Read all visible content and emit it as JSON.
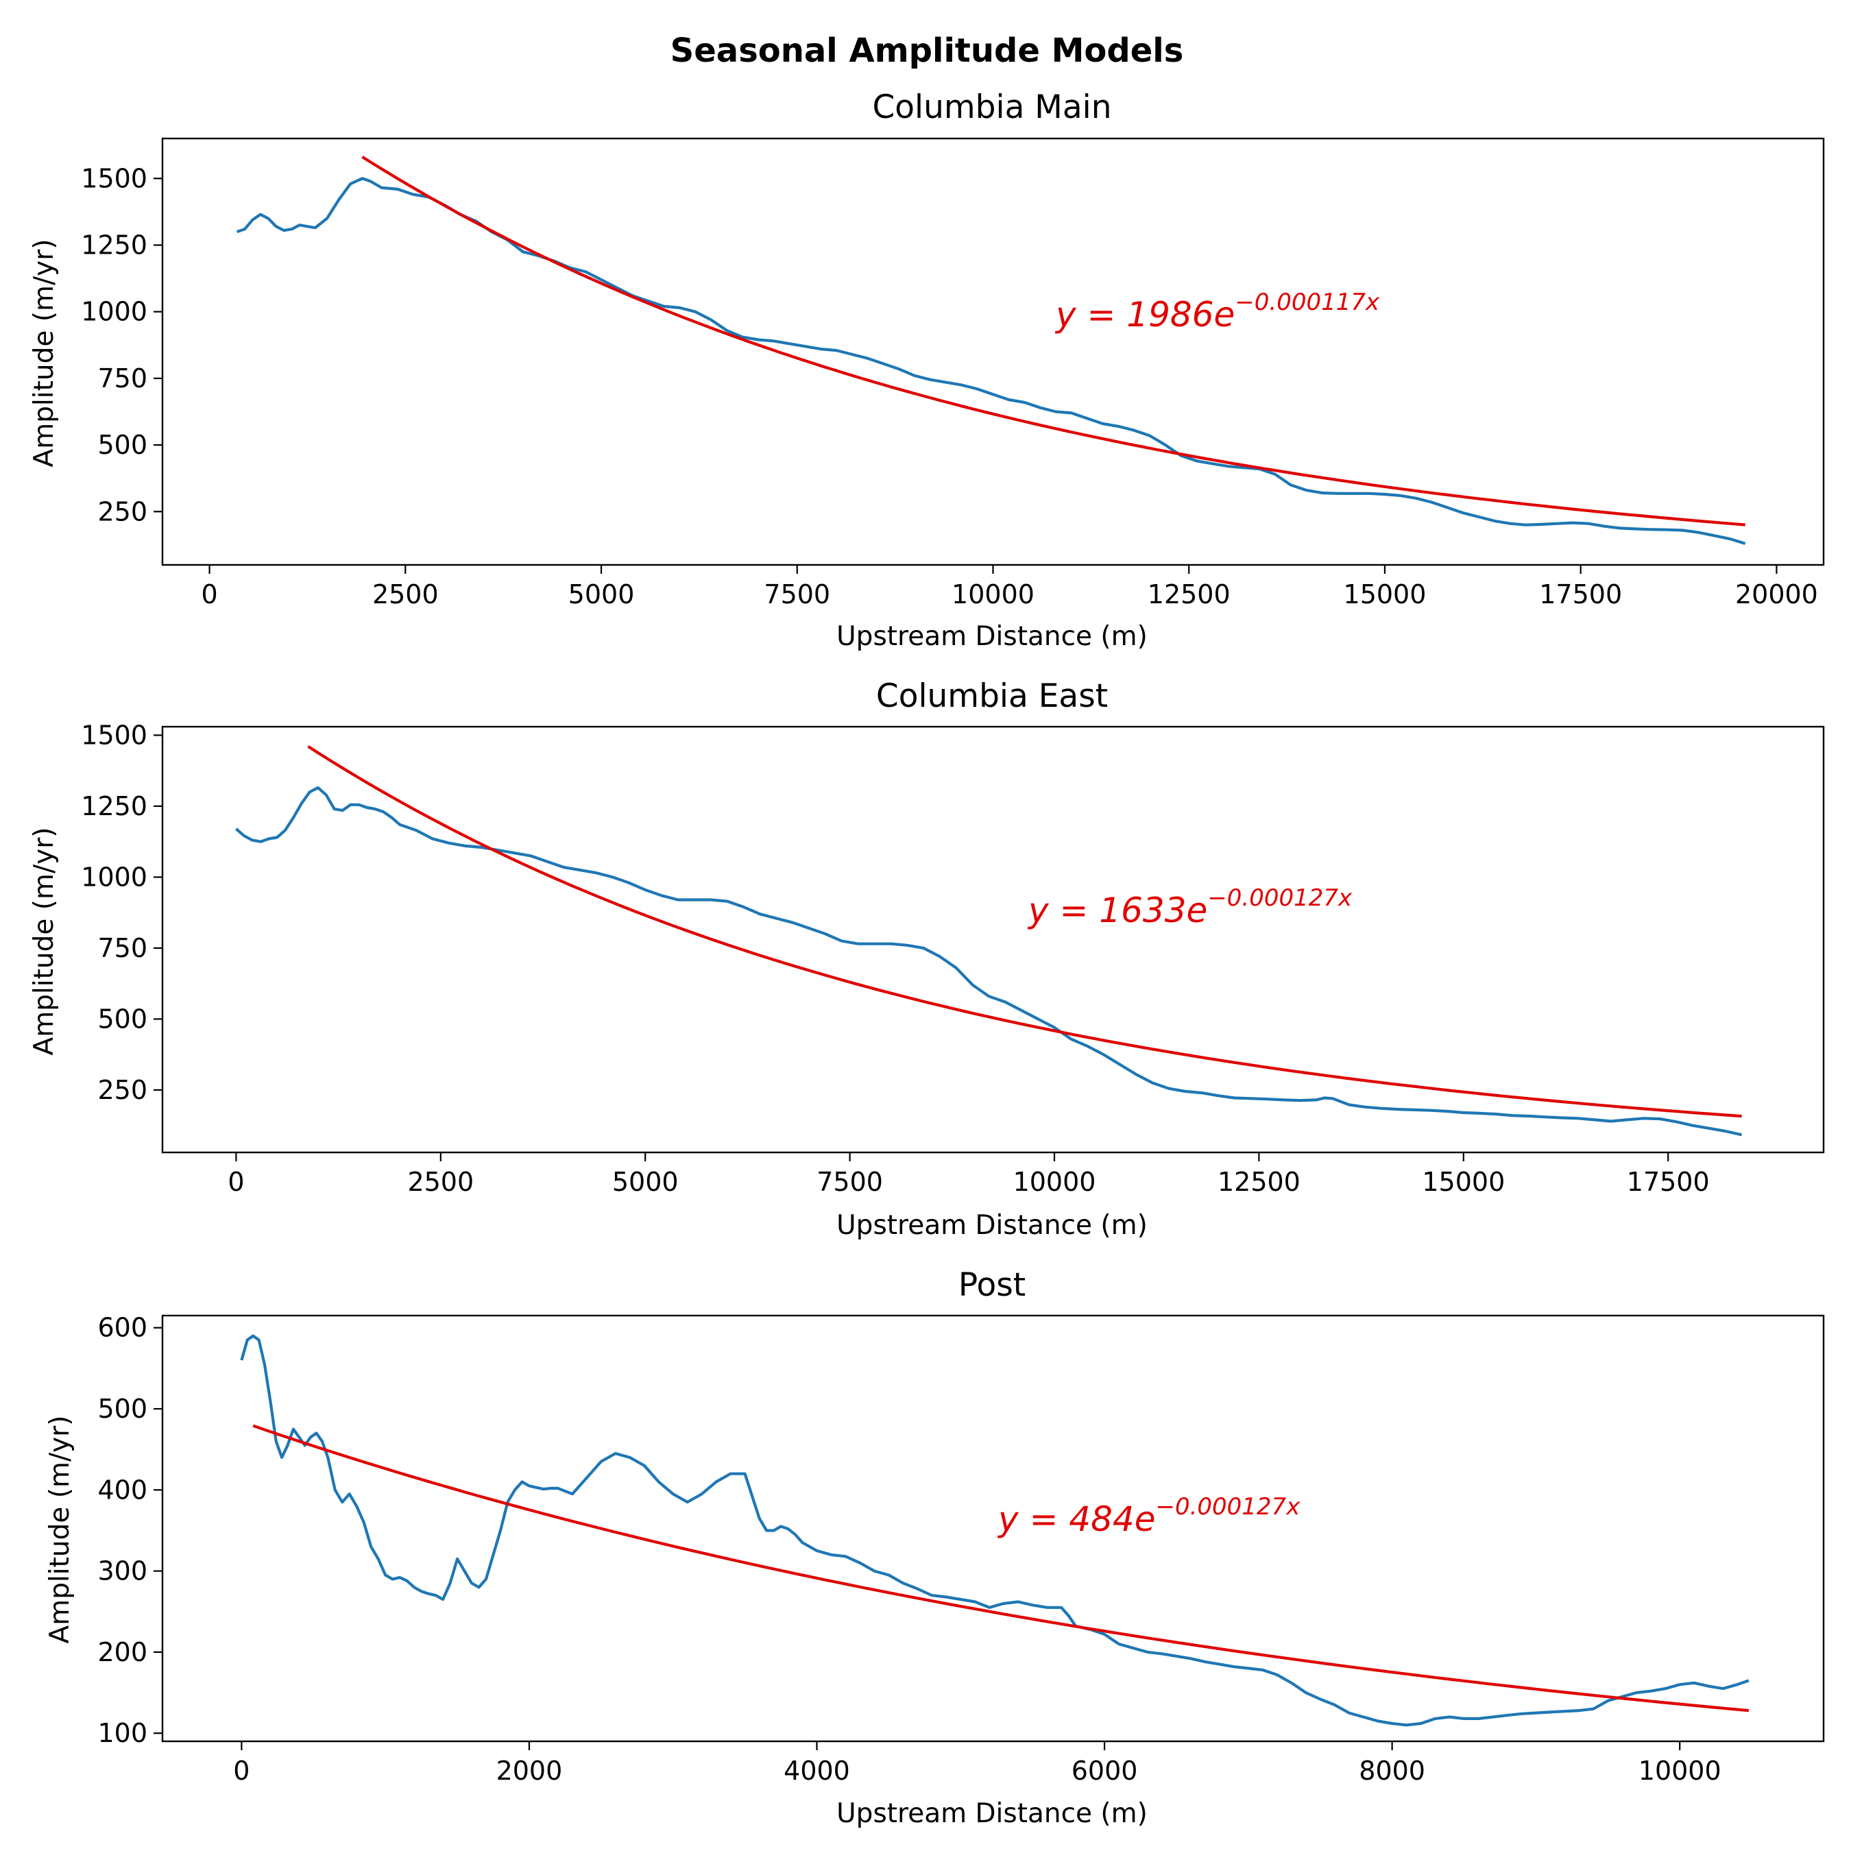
{
  "figure_title": "Seasonal Amplitude Models",
  "colors": {
    "data_line": "#1f77b4",
    "fit_line": "#e00000",
    "axis": "#000000"
  },
  "chart_data": [
    {
      "type": "line",
      "title": "Columbia Main",
      "xlabel": "Upstream Distance (m)",
      "ylabel": "Amplitude (m/yr)",
      "xlim": [
        -600,
        20600
      ],
      "ylim": [
        50,
        1650
      ],
      "xticks": [
        0,
        2500,
        5000,
        7500,
        10000,
        12500,
        15000,
        17500,
        20000
      ],
      "yticks": [
        250,
        500,
        750,
        1000,
        1250,
        1500
      ],
      "grid": false,
      "equation": {
        "prefix": "y = 1986e",
        "exponent": "−0.000117x"
      },
      "fit": {
        "a": 1986,
        "b": 0.000117,
        "x_start": 1950,
        "x_end": 19600
      },
      "series": [
        {
          "x": [
            350,
            450,
            550,
            650,
            750,
            850,
            950,
            1050,
            1150,
            1250,
            1350,
            1500,
            1650,
            1800,
            1950,
            2050,
            2200,
            2400,
            2600,
            2800,
            3000,
            3200,
            3400,
            3600,
            3800,
            4000,
            4200,
            4400,
            4600,
            4800,
            5000,
            5200,
            5400,
            5600,
            5800,
            6000,
            6200,
            6400,
            6600,
            6800,
            7000,
            7200,
            7400,
            7600,
            7800,
            8000,
            8200,
            8400,
            8600,
            8800,
            9000,
            9200,
            9400,
            9600,
            9800,
            10000,
            10200,
            10400,
            10600,
            10800,
            11000,
            11200,
            11400,
            11600,
            11800,
            12000,
            12200,
            12400,
            12600,
            12800,
            13000,
            13200,
            13400,
            13600,
            13800,
            14000,
            14200,
            14400,
            14600,
            14800,
            15000,
            15200,
            15400,
            15600,
            15800,
            16000,
            16200,
            16400,
            16600,
            16800,
            17000,
            17200,
            17400,
            17600,
            17800,
            18000,
            18200,
            18400,
            18600,
            18800,
            19000,
            19200,
            19400,
            19600
          ],
          "y": [
            1300,
            1310,
            1345,
            1365,
            1350,
            1320,
            1305,
            1310,
            1325,
            1320,
            1315,
            1350,
            1420,
            1480,
            1500,
            1490,
            1465,
            1460,
            1440,
            1430,
            1400,
            1365,
            1340,
            1300,
            1270,
            1225,
            1210,
            1190,
            1165,
            1150,
            1120,
            1090,
            1060,
            1040,
            1020,
            1015,
            1000,
            970,
            930,
            905,
            895,
            890,
            880,
            870,
            860,
            855,
            840,
            825,
            805,
            785,
            760,
            745,
            735,
            725,
            710,
            690,
            670,
            660,
            640,
            625,
            620,
            600,
            580,
            570,
            555,
            535,
            500,
            460,
            440,
            430,
            420,
            415,
            410,
            390,
            350,
            330,
            320,
            318,
            318,
            318,
            315,
            310,
            300,
            285,
            265,
            245,
            230,
            215,
            205,
            200,
            202,
            205,
            208,
            205,
            195,
            188,
            185,
            183,
            182,
            180,
            172,
            160,
            148,
            130
          ]
        }
      ]
    },
    {
      "type": "line",
      "title": "Columbia East",
      "xlabel": "Upstream Distance (m)",
      "ylabel": "Amplitude (m/yr)",
      "xlim": [
        -900,
        19400
      ],
      "ylim": [
        30,
        1530
      ],
      "xticks": [
        0,
        2500,
        5000,
        7500,
        10000,
        12500,
        15000,
        17500
      ],
      "yticks": [
        250,
        500,
        750,
        1000,
        1250,
        1500
      ],
      "grid": false,
      "equation": {
        "prefix": "y = 1633e",
        "exponent": "−0.000127x"
      },
      "fit": {
        "a": 1633,
        "b": 0.000127,
        "x_start": 880,
        "x_end": 18400
      },
      "series": [
        {
          "x": [
            0,
            100,
            200,
            300,
            400,
            500,
            600,
            700,
            800,
            900,
            1000,
            1100,
            1200,
            1300,
            1400,
            1500,
            1600,
            1700,
            1800,
            1900,
            2000,
            2200,
            2400,
            2600,
            2800,
            3000,
            3200,
            3400,
            3600,
            3800,
            4000,
            4200,
            4400,
            4600,
            4800,
            5000,
            5200,
            5400,
            5600,
            5800,
            6000,
            6200,
            6400,
            6600,
            6800,
            7000,
            7200,
            7400,
            7600,
            7800,
            8000,
            8200,
            8400,
            8600,
            8800,
            9000,
            9200,
            9400,
            9600,
            9800,
            10000,
            10200,
            10400,
            10600,
            10800,
            11000,
            11200,
            11400,
            11600,
            11800,
            12000,
            12200,
            12400,
            12600,
            12800,
            13000,
            13200,
            13300,
            13400,
            13600,
            13800,
            14000,
            14200,
            14400,
            14600,
            14800,
            15000,
            15200,
            15400,
            15600,
            15800,
            16000,
            16200,
            16400,
            16600,
            16800,
            17000,
            17200,
            17400,
            17600,
            17800,
            18000,
            18200,
            18400
          ],
          "y": [
            1170,
            1145,
            1130,
            1125,
            1135,
            1140,
            1165,
            1210,
            1260,
            1300,
            1315,
            1290,
            1240,
            1235,
            1255,
            1255,
            1245,
            1240,
            1230,
            1210,
            1185,
            1165,
            1135,
            1120,
            1110,
            1105,
            1095,
            1085,
            1075,
            1055,
            1035,
            1025,
            1015,
            1000,
            980,
            955,
            935,
            920,
            920,
            920,
            915,
            895,
            870,
            855,
            840,
            820,
            800,
            775,
            765,
            765,
            765,
            760,
            750,
            720,
            680,
            620,
            580,
            560,
            530,
            500,
            470,
            430,
            405,
            375,
            340,
            305,
            275,
            255,
            245,
            240,
            230,
            222,
            220,
            218,
            215,
            213,
            215,
            222,
            220,
            198,
            190,
            185,
            182,
            180,
            178,
            175,
            170,
            168,
            165,
            160,
            158,
            155,
            152,
            150,
            145,
            140,
            145,
            150,
            148,
            138,
            125,
            115,
            105,
            92
          ]
        }
      ]
    },
    {
      "type": "line",
      "title": "Post",
      "xlabel": "Upstream Distance (m)",
      "ylabel": "Amplitude (m/yr)",
      "xlim": [
        -550,
        11000
      ],
      "ylim": [
        90,
        615
      ],
      "xticks": [
        0,
        2000,
        4000,
        6000,
        8000,
        10000
      ],
      "yticks": [
        100,
        200,
        300,
        400,
        500,
        600
      ],
      "grid": false,
      "equation": {
        "prefix": "y = 484e",
        "exponent": "−0.000127x"
      },
      "fit": {
        "a": 484,
        "b": 0.000127,
        "x_start": 80,
        "x_end": 10480
      },
      "series": [
        {
          "x": [
            0,
            40,
            80,
            120,
            160,
            200,
            240,
            280,
            320,
            360,
            400,
            440,
            480,
            520,
            560,
            600,
            650,
            700,
            750,
            800,
            850,
            900,
            950,
            1000,
            1050,
            1100,
            1150,
            1200,
            1250,
            1300,
            1350,
            1400,
            1450,
            1500,
            1550,
            1600,
            1650,
            1700,
            1750,
            1800,
            1850,
            1900,
            1950,
            2000,
            2050,
            2100,
            2150,
            2200,
            2300,
            2400,
            2500,
            2600,
            2700,
            2800,
            2850,
            2900,
            3000,
            3100,
            3200,
            3300,
            3400,
            3500,
            3600,
            3650,
            3700,
            3750,
            3800,
            3850,
            3900,
            3950,
            4000,
            4100,
            4200,
            4300,
            4400,
            4500,
            4600,
            4700,
            4800,
            4900,
            5000,
            5100,
            5200,
            5300,
            5400,
            5500,
            5600,
            5700,
            5750,
            5800,
            5900,
            6000,
            6100,
            6200,
            6300,
            6400,
            6500,
            6600,
            6700,
            6800,
            6900,
            7000,
            7100,
            7200,
            7300,
            7400,
            7500,
            7600,
            7700,
            7800,
            7900,
            8000,
            8100,
            8200,
            8300,
            8400,
            8500,
            8600,
            8700,
            8800,
            8900,
            9000,
            9100,
            9200,
            9300,
            9400,
            9500,
            9600,
            9700,
            9800,
            9900,
            10000,
            10100,
            10200,
            10300,
            10400,
            10480
          ],
          "y": [
            560,
            585,
            590,
            585,
            555,
            510,
            460,
            440,
            455,
            475,
            465,
            455,
            465,
            470,
            460,
            440,
            400,
            385,
            395,
            380,
            360,
            330,
            315,
            295,
            290,
            292,
            288,
            280,
            275,
            272,
            270,
            265,
            285,
            315,
            300,
            285,
            280,
            290,
            320,
            350,
            385,
            400,
            410,
            405,
            403,
            401,
            402,
            402,
            395,
            415,
            435,
            445,
            440,
            430,
            420,
            410,
            395,
            385,
            395,
            410,
            420,
            420,
            365,
            350,
            350,
            355,
            352,
            345,
            335,
            330,
            325,
            320,
            318,
            310,
            300,
            295,
            285,
            278,
            270,
            268,
            265,
            262,
            255,
            260,
            262,
            258,
            255,
            255,
            245,
            232,
            228,
            222,
            210,
            205,
            200,
            198,
            195,
            192,
            188,
            185,
            182,
            180,
            178,
            172,
            162,
            150,
            142,
            135,
            125,
            120,
            115,
            112,
            110,
            112,
            118,
            120,
            118,
            118,
            120,
            122,
            124,
            125,
            126,
            127,
            128,
            130,
            140,
            145,
            150,
            152,
            155,
            160,
            162,
            158,
            155,
            160,
            165
          ]
        }
      ]
    }
  ]
}
